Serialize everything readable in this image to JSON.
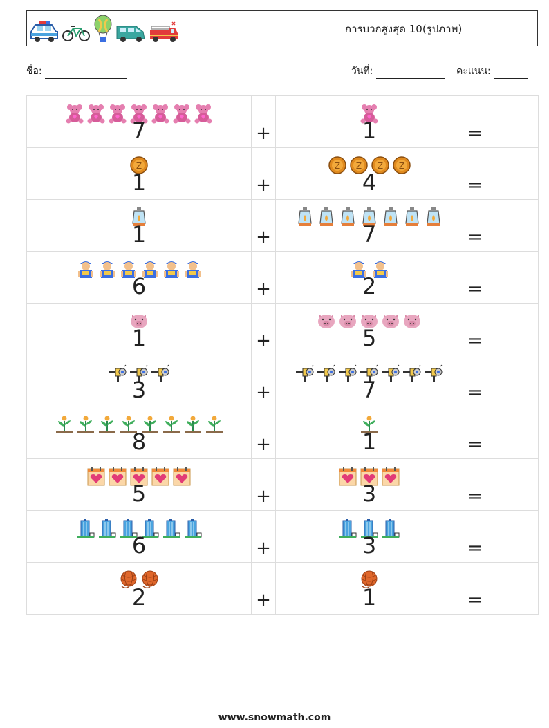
{
  "header": {
    "title": "การบวกสูงสุด 10(รูปภาพ)",
    "icons": [
      "police-car-icon",
      "bicycle-icon",
      "hot-air-balloon-icon",
      "van-icon",
      "fire-truck-icon"
    ]
  },
  "info": {
    "name_label": "ชื่อ:",
    "date_label": "วันที่:",
    "score_label": "คะแนน:"
  },
  "symbols": {
    "plus": "+",
    "equals": "="
  },
  "problems": [
    {
      "a": 7,
      "b": 1,
      "icon": "teddy-bear-icon"
    },
    {
      "a": 1,
      "b": 4,
      "icon": "coin-icon"
    },
    {
      "a": 1,
      "b": 7,
      "icon": "lantern-icon"
    },
    {
      "a": 6,
      "b": 2,
      "icon": "worker-icon"
    },
    {
      "a": 1,
      "b": 5,
      "icon": "pig-face-icon"
    },
    {
      "a": 3,
      "b": 7,
      "icon": "nozzle-icon"
    },
    {
      "a": 8,
      "b": 1,
      "icon": "plant-icon"
    },
    {
      "a": 5,
      "b": 3,
      "icon": "heart-calendar-icon"
    },
    {
      "a": 6,
      "b": 3,
      "icon": "skyscraper-icon"
    },
    {
      "a": 2,
      "b": 1,
      "icon": "yarn-ball-icon"
    }
  ],
  "footer": {
    "url": "www.snowmath.com"
  }
}
